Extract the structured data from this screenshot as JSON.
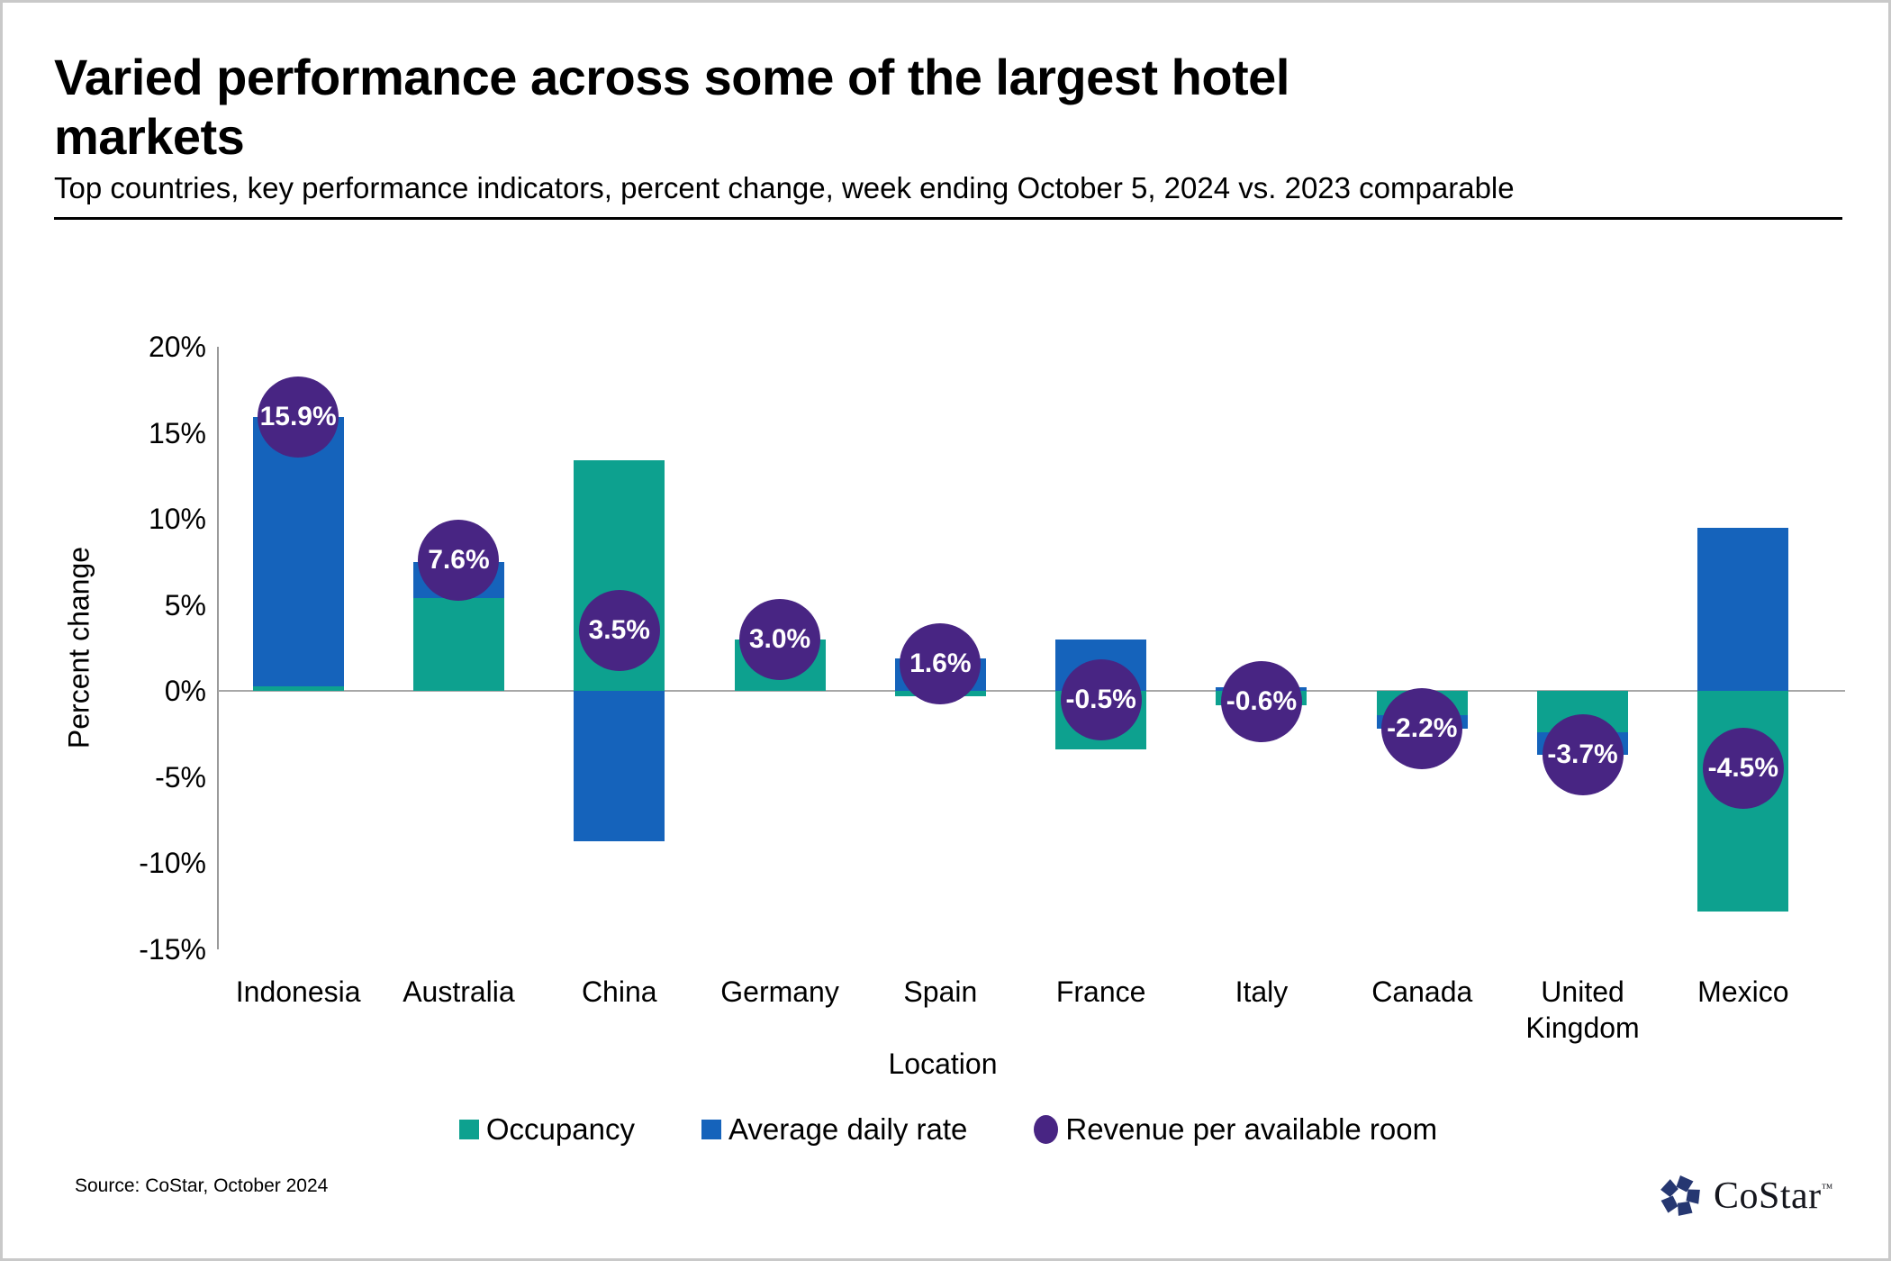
{
  "page": {
    "title": "Varied performance across some of the largest hotel\nmarkets",
    "subtitle": "Top countries, key performance indicators, percent change, week ending October 5, 2024 vs. 2023 comparable",
    "source": "Source: CoStar, October 2024",
    "brand": "CoStar",
    "brand_tm": "TM"
  },
  "colors": {
    "occupancy": "#0DA18F",
    "adr": "#1563BB",
    "revpar": "#482583",
    "axis_line": "#9A9A9A",
    "zero_gridline": "#A8A8A8",
    "logo_navy": "#263771",
    "text": "#000000"
  },
  "chart_data": {
    "type": "bar",
    "title": "Varied performance across some of the largest hotel markets",
    "subtitle": "Top countries, key performance indicators, percent change, week ending October 5, 2024 vs. 2023 comparable",
    "categories": [
      "Indonesia",
      "Australia",
      "China",
      "Germany",
      "Spain",
      "France",
      "Italy",
      "Canada",
      "United Kingdom",
      "Mexico"
    ],
    "series": [
      {
        "name": "Occupancy",
        "render": "stacked-bar",
        "color_key": "occupancy",
        "values": [
          0.3,
          5.4,
          13.4,
          3.0,
          -0.3,
          -3.4,
          -0.8,
          -1.4,
          -2.4,
          -12.8
        ]
      },
      {
        "name": "Average daily rate",
        "render": "stacked-bar",
        "color_key": "adr",
        "values": [
          15.6,
          2.1,
          -8.7,
          0.0,
          1.9,
          3.0,
          0.2,
          -0.8,
          -1.3,
          9.5
        ]
      },
      {
        "name": "Revenue per available room",
        "render": "point-label",
        "color_key": "revpar",
        "values": [
          15.9,
          7.6,
          3.5,
          3.0,
          1.6,
          -0.5,
          -0.6,
          -2.2,
          -3.7,
          -4.5
        ],
        "labels": [
          "15.9%",
          "7.6%",
          "3.5%",
          "3.0%",
          "1.6%",
          "-0.5%",
          "-0.6%",
          "-2.2%",
          "-3.7%",
          "-4.5%"
        ]
      }
    ],
    "xlabel": "Location",
    "ylabel": "Percent change",
    "ylim": [
      -15,
      20
    ],
    "ytick_values": [
      20,
      15,
      10,
      5,
      0,
      -5,
      -10,
      -15
    ],
    "ytick_labels": [
      "20%",
      "15%",
      "10%",
      "5%",
      "0%",
      "-5%",
      "-10%",
      "-15%"
    ],
    "grid": "zero-line-only",
    "legend_position": "bottom"
  }
}
